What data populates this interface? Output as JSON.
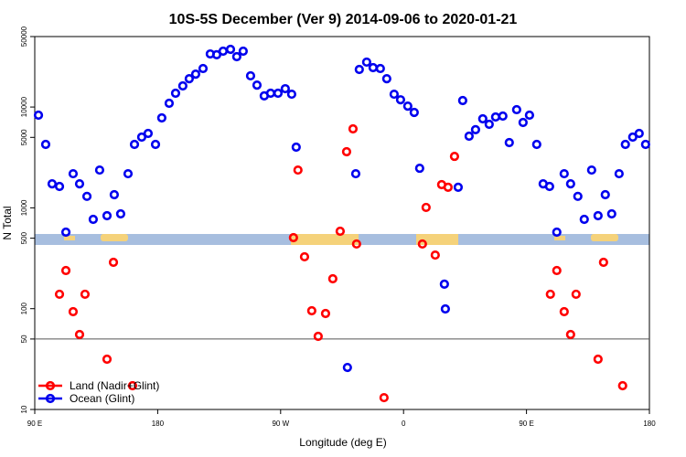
{
  "chart_data": {
    "type": "scatter",
    "title": "10S-5S December (Ver 9)   2014-09-06 to 2020-01-21",
    "x_label": "Longitude (deg E)",
    "y_label": "N Total",
    "log_y": true,
    "legend": "bottomleft",
    "xlim": [
      90,
      540
    ],
    "xticks": [
      {
        "value": 90,
        "label": "90 E"
      },
      180,
      {
        "value": 270,
        "label": "90 W"
      },
      {
        "value": 360,
        "label": "0"
      },
      {
        "value": 450,
        "label": "90 E"
      },
      {
        "value": 540,
        "label": "180"
      }
    ],
    "ylim": [
      10,
      50000
    ],
    "yticks": [
      10,
      50,
      100,
      500,
      1000,
      5000,
      10000,
      50000
    ],
    "hlines": [
      50
    ],
    "series": [
      {
        "name": "Land (Nadir+Glint)",
        "color": "#ff0000",
        "x": [
          108.1,
          112.8,
          118.1,
          122.8,
          126.8,
          142.9,
          147.6,
          161.6,
          279.4,
          282.7,
          287.5,
          292.8,
          297.5,
          302.9,
          308.2,
          313.6,
          318.3,
          323.0,
          325.6,
          345.7,
          373.8,
          376.5,
          383.2,
          387.9,
          392.6,
          397.3,
          467.5,
          472.2,
          477.6,
          482.3,
          486.3,
          502.4,
          506.4,
          520.4
        ],
        "values": [
          139,
          239,
          93.3,
          55.4,
          139,
          31.5,
          288,
          17.2,
          506,
          2370,
          327,
          95.3,
          53.1,
          89.5,
          198,
          586,
          3600,
          6070,
          438,
          13.1,
          438,
          1010,
          340,
          1700,
          1600,
          3240,
          139,
          239,
          93.3,
          55.4,
          139,
          31.5,
          288,
          17.2
        ]
      },
      {
        "name": "Ocean (Glint)",
        "color": "#0000ee",
        "x": [
          92.7,
          98.0,
          102.7,
          108.1,
          112.8,
          118.1,
          122.8,
          128.2,
          132.8,
          137.5,
          142.9,
          148.2,
          152.9,
          158.3,
          163.0,
          168.3,
          173.0,
          178.4,
          183.0,
          188.4,
          193.1,
          198.4,
          203.1,
          207.8,
          213.2,
          218.5,
          223.2,
          227.9,
          233.3,
          237.9,
          242.6,
          248.0,
          252.7,
          258.0,
          262.7,
          268.1,
          273.4,
          278.1,
          281.4,
          318.9,
          325.0,
          327.6,
          333.0,
          337.7,
          343.0,
          347.7,
          353.1,
          357.8,
          363.1,
          367.8,
          371.8,
          389.9,
          390.6,
          400.0,
          403.3,
          408.0,
          412.7,
          418.0,
          422.7,
          427.4,
          432.7,
          437.4,
          442.8,
          447.5,
          452.2,
          457.5,
          462.2,
          466.9,
          472.2,
          477.6,
          482.3,
          487.6,
          492.3,
          497.7,
          502.4,
          507.7,
          512.4,
          517.8,
          522.4,
          527.8,
          532.5,
          537.2
        ],
        "values": [
          8300,
          4260,
          1730,
          1630,
          574,
          2180,
          1730,
          1300,
          769,
          2370,
          836,
          1350,
          871,
          2180,
          4260,
          5030,
          5470,
          4260,
          7800,
          10900,
          13700,
          16200,
          19100,
          21200,
          24100,
          33600,
          33000,
          35800,
          37300,
          31600,
          35800,
          20400,
          16500,
          12900,
          13700,
          13700,
          15200,
          13400,
          4000,
          26.1,
          2180,
          23600,
          27900,
          24600,
          24100,
          19100,
          13400,
          11800,
          10200,
          8840,
          2470,
          175,
          99.3,
          1600,
          11600,
          5140,
          5960,
          7640,
          6740,
          7960,
          8130,
          4440,
          9420,
          7030,
          8300,
          4260,
          1730,
          1630,
          574,
          2180,
          1730,
          1300,
          769,
          2370,
          836,
          1350,
          871,
          2180,
          4260,
          5030,
          5470,
          4260
        ]
      }
    ]
  }
}
